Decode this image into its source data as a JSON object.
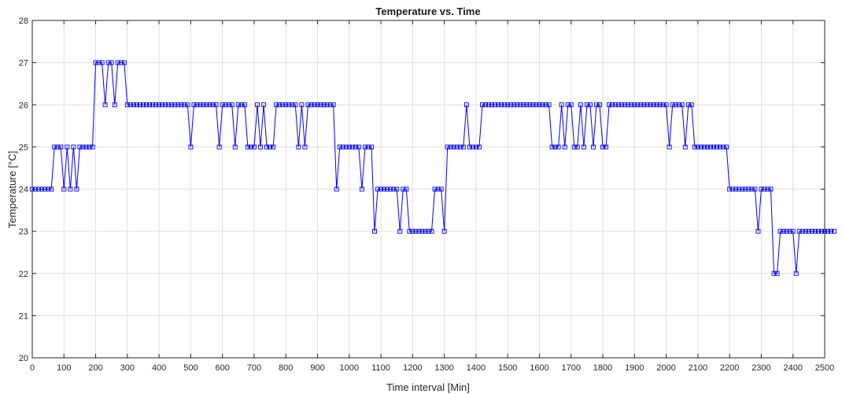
{
  "chart_data": {
    "type": "line",
    "title": "Temperature vs. Time",
    "xlabel": "Time interval [Min]",
    "ylabel": "Temperature [°C]",
    "xlim": [
      0,
      2500
    ],
    "ylim": [
      20,
      28
    ],
    "xticks": [
      0,
      100,
      200,
      300,
      400,
      500,
      600,
      700,
      800,
      900,
      1000,
      1100,
      1200,
      1300,
      1400,
      1500,
      1600,
      1700,
      1800,
      1900,
      2000,
      2100,
      2200,
      2300,
      2400,
      2500
    ],
    "yticks": [
      20,
      21,
      22,
      23,
      24,
      25,
      26,
      27,
      28
    ],
    "grid": true,
    "marker": "square",
    "line_color": "#0000ff",
    "x_step": 10,
    "series": [
      {
        "name": "",
        "x_start": 0,
        "values": [
          24,
          24,
          24,
          24,
          24,
          24,
          24,
          25,
          25,
          25,
          24,
          25,
          24,
          25,
          24,
          25,
          25,
          25,
          25,
          25,
          27,
          27,
          27,
          26,
          27,
          27,
          26,
          27,
          27,
          27,
          26,
          26,
          26,
          26,
          26,
          26,
          26,
          26,
          26,
          26,
          26,
          26,
          26,
          26,
          26,
          26,
          26,
          26,
          26,
          26,
          25,
          26,
          26,
          26,
          26,
          26,
          26,
          26,
          26,
          25,
          26,
          26,
          26,
          26,
          25,
          26,
          26,
          26,
          25,
          25,
          25,
          26,
          25,
          26,
          25,
          25,
          25,
          26,
          26,
          26,
          26,
          26,
          26,
          26,
          25,
          26,
          25,
          26,
          26,
          26,
          26,
          26,
          26,
          26,
          26,
          26,
          24,
          25,
          25,
          25,
          25,
          25,
          25,
          25,
          24,
          25,
          25,
          25,
          23,
          24,
          24,
          24,
          24,
          24,
          24,
          24,
          23,
          24,
          24,
          23,
          23,
          23,
          23,
          23,
          23,
          23,
          23,
          24,
          24,
          24,
          23,
          25,
          25,
          25,
          25,
          25,
          25,
          26,
          25,
          25,
          25,
          25,
          26,
          26,
          26,
          26,
          26,
          26,
          26,
          26,
          26,
          26,
          26,
          26,
          26,
          26,
          26,
          26,
          26,
          26,
          26,
          26,
          26,
          26,
          25,
          25,
          25,
          26,
          25,
          26,
          26,
          25,
          25,
          26,
          25,
          26,
          26,
          25,
          26,
          26,
          25,
          25,
          26,
          26,
          26,
          26,
          26,
          26,
          26,
          26,
          26,
          26,
          26,
          26,
          26,
          26,
          26,
          26,
          26,
          26,
          26,
          25,
          26,
          26,
          26,
          26,
          25,
          26,
          26,
          25,
          25,
          25,
          25,
          25,
          25,
          25,
          25,
          25,
          25,
          25,
          24,
          24,
          24,
          24,
          24,
          24,
          24,
          24,
          24,
          23,
          24,
          24,
          24,
          24,
          22,
          22,
          23,
          23,
          23,
          23,
          23,
          22,
          23,
          23,
          23,
          23,
          23,
          23,
          23,
          23,
          23,
          23,
          23,
          23
        ]
      }
    ]
  }
}
